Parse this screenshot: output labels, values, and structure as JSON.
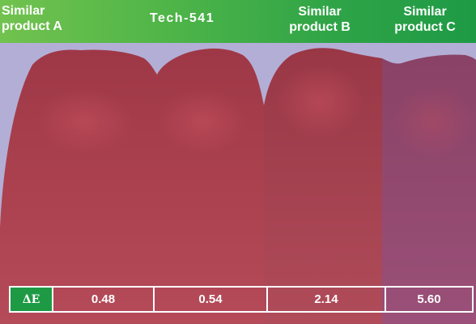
{
  "header": {
    "labels": [
      {
        "line1": "Similar",
        "line2": "product A"
      },
      {
        "line1": "Tech-541"
      },
      {
        "line1": "Similar",
        "line2": "product B"
      },
      {
        "line1": "Similar",
        "line2": "product C"
      }
    ]
  },
  "table": {
    "metric_label": "ΔE",
    "values": [
      "0.48",
      "0.54",
      "2.14",
      "5.60"
    ]
  },
  "colors": {
    "header_green": "#2fa447",
    "background_lavender": "#b3aed6",
    "tooth_red": "#ab4150",
    "tooth_purple": "#8d4a6e"
  }
}
